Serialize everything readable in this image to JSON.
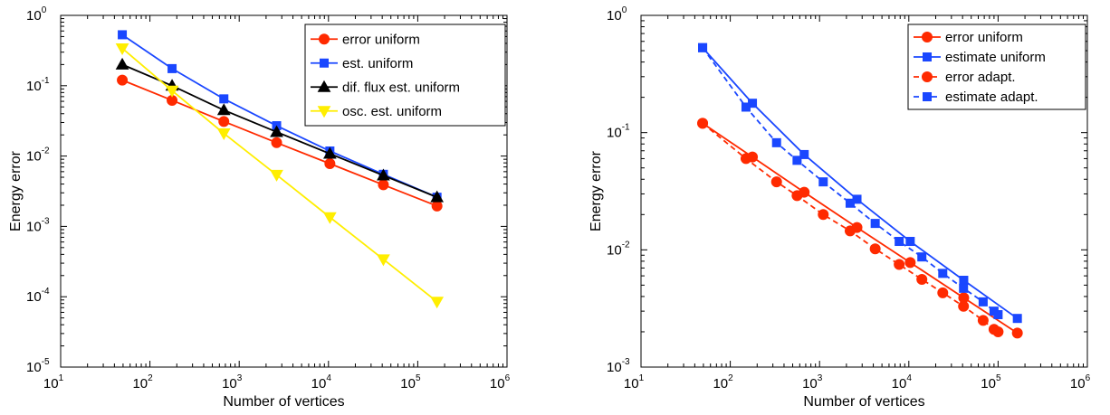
{
  "chart_data": [
    {
      "type": "line",
      "xscale": "log",
      "yscale": "log",
      "xlim": [
        10,
        1000000
      ],
      "ylim": [
        1e-05,
        1
      ],
      "xlabel": "Number of vertices",
      "ylabel": "Energy error",
      "x_ticks": [
        {
          "base": "10",
          "exp": "1",
          "value": 10
        },
        {
          "base": "10",
          "exp": "2",
          "value": 100
        },
        {
          "base": "10",
          "exp": "3",
          "value": 1000
        },
        {
          "base": "10",
          "exp": "4",
          "value": 10000
        },
        {
          "base": "10",
          "exp": "5",
          "value": 100000
        },
        {
          "base": "10",
          "exp": "6",
          "value": 1000000
        }
      ],
      "y_ticks": [
        {
          "base": "10",
          "exp": "-5",
          "value": 1e-05
        },
        {
          "base": "10",
          "exp": "-4",
          "value": 0.0001
        },
        {
          "base": "10",
          "exp": "-3",
          "value": 0.001
        },
        {
          "base": "10",
          "exp": "-2",
          "value": 0.01
        },
        {
          "base": "10",
          "exp": "-1",
          "value": 0.1
        },
        {
          "base": "10",
          "exp": "0",
          "value": 1
        }
      ],
      "grid": false,
      "legend_position": "top-right",
      "series": [
        {
          "name": "error uniform",
          "color": "#ff2a00",
          "marker": "circle",
          "dash": "solid",
          "x": [
            49,
            177,
            673,
            2625,
            10369,
            41217,
            164353
          ],
          "y": [
            0.12,
            0.062,
            0.031,
            0.0155,
            0.0078,
            0.0039,
            0.00195
          ]
        },
        {
          "name": "est. uniform",
          "color": "#1a47ff",
          "marker": "square",
          "dash": "solid",
          "x": [
            49,
            177,
            673,
            2625,
            10369,
            41217,
            164353
          ],
          "y": [
            0.53,
            0.175,
            0.065,
            0.027,
            0.0118,
            0.0055,
            0.0026
          ]
        },
        {
          "name": "dif. flux est. uniform",
          "color": "#000000",
          "marker": "triangle-up",
          "dash": "solid",
          "x": [
            49,
            177,
            673,
            2625,
            10369,
            41217,
            164353
          ],
          "y": [
            0.2,
            0.1,
            0.045,
            0.022,
            0.0108,
            0.0053,
            0.0026
          ]
        },
        {
          "name": "osc. est. uniform",
          "color": "#ffee00",
          "marker": "triangle-down",
          "dash": "solid",
          "x": [
            49,
            177,
            673,
            2625,
            10369,
            41217,
            164353
          ],
          "y": [
            0.34,
            0.085,
            0.021,
            0.0054,
            0.00135,
            0.00034,
            8.5e-05
          ]
        }
      ]
    },
    {
      "type": "line",
      "xscale": "log",
      "yscale": "log",
      "xlim": [
        10,
        1000000
      ],
      "ylim": [
        0.001,
        1
      ],
      "xlabel": "Number of vertices",
      "ylabel": "Energy error",
      "x_ticks": [
        {
          "base": "10",
          "exp": "1",
          "value": 10
        },
        {
          "base": "10",
          "exp": "2",
          "value": 100
        },
        {
          "base": "10",
          "exp": "3",
          "value": 1000
        },
        {
          "base": "10",
          "exp": "4",
          "value": 10000
        },
        {
          "base": "10",
          "exp": "5",
          "value": 100000
        },
        {
          "base": "10",
          "exp": "6",
          "value": 1000000
        }
      ],
      "y_ticks": [
        {
          "base": "10",
          "exp": "-3",
          "value": 0.001
        },
        {
          "base": "10",
          "exp": "-2",
          "value": 0.01
        },
        {
          "base": "10",
          "exp": "-1",
          "value": 0.1
        },
        {
          "base": "10",
          "exp": "0",
          "value": 1
        }
      ],
      "grid": false,
      "legend_position": "top-right",
      "series": [
        {
          "name": "error uniform",
          "color": "#ff2a00",
          "marker": "circle",
          "dash": "solid",
          "x": [
            49,
            177,
            673,
            2625,
            10369,
            41217,
            164353
          ],
          "y": [
            0.12,
            0.062,
            0.031,
            0.0155,
            0.0078,
            0.0039,
            0.00195
          ]
        },
        {
          "name": "estimate uniform",
          "color": "#1a47ff",
          "marker": "square",
          "dash": "solid",
          "x": [
            49,
            177,
            673,
            2625,
            10369,
            41217,
            164353
          ],
          "y": [
            0.53,
            0.178,
            0.065,
            0.027,
            0.0118,
            0.0055,
            0.0026
          ]
        },
        {
          "name": "error adapt.",
          "color": "#ff2a00",
          "marker": "circle",
          "dash": "dashed",
          "x": [
            49,
            150,
            330,
            560,
            1100,
            2200,
            4200,
            7800,
            14000,
            24000,
            41000,
            68000,
            90000,
            100000
          ],
          "y": [
            0.12,
            0.06,
            0.038,
            0.029,
            0.02,
            0.0145,
            0.0102,
            0.0075,
            0.0056,
            0.0043,
            0.0033,
            0.0025,
            0.0021,
            0.002
          ]
        },
        {
          "name": "estimate adapt.",
          "color": "#1a47ff",
          "marker": "square",
          "dash": "dashed",
          "x": [
            49,
            150,
            330,
            560,
            1100,
            2200,
            4200,
            7800,
            14000,
            24000,
            41000,
            68000,
            90000,
            100000
          ],
          "y": [
            0.53,
            0.165,
            0.082,
            0.058,
            0.038,
            0.025,
            0.0168,
            0.0118,
            0.0087,
            0.0063,
            0.0047,
            0.0036,
            0.003,
            0.0028
          ]
        }
      ]
    }
  ]
}
